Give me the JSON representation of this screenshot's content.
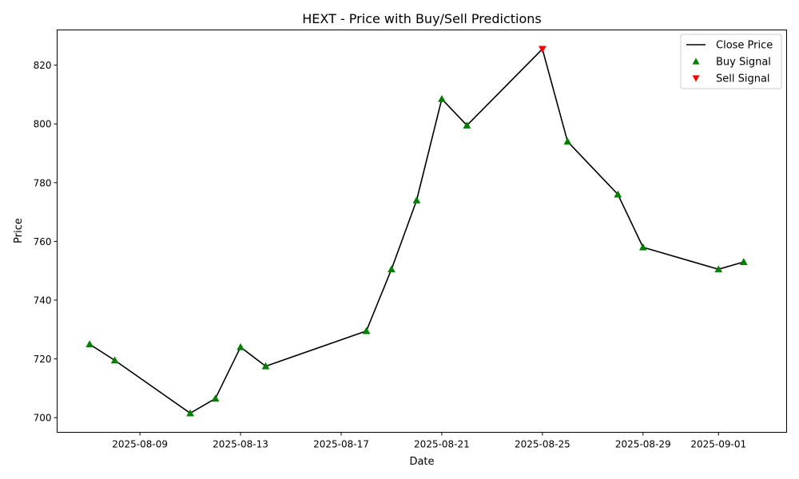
{
  "chart_data": {
    "type": "line",
    "title": "HEXT - Price with Buy/Sell Predictions",
    "xlabel": "Date",
    "ylabel": "Price",
    "xlim": [
      "2025-08-05T17:00",
      "2025-09-03T17:00"
    ],
    "ylim": [
      695,
      832
    ],
    "grid": false,
    "legend_position": "top-right",
    "x_ticks": [
      "2025-08-09",
      "2025-08-13",
      "2025-08-17",
      "2025-08-21",
      "2025-08-25",
      "2025-08-29",
      "2025-09-01"
    ],
    "y_ticks": [
      700,
      720,
      740,
      760,
      780,
      800,
      820
    ],
    "series": [
      {
        "name": "Close Price",
        "kind": "line",
        "color": "#000000",
        "points": [
          {
            "x": "2025-08-07",
            "y": 725.0
          },
          {
            "x": "2025-08-08",
            "y": 719.5
          },
          {
            "x": "2025-08-11",
            "y": 701.5
          },
          {
            "x": "2025-08-12",
            "y": 706.5
          },
          {
            "x": "2025-08-13",
            "y": 724.0
          },
          {
            "x": "2025-08-14",
            "y": 717.5
          },
          {
            "x": "2025-08-18",
            "y": 729.5
          },
          {
            "x": "2025-08-19",
            "y": 750.5
          },
          {
            "x": "2025-08-20",
            "y": 774.0
          },
          {
            "x": "2025-08-21",
            "y": 808.5
          },
          {
            "x": "2025-08-22",
            "y": 799.5
          },
          {
            "x": "2025-08-25",
            "y": 825.5
          },
          {
            "x": "2025-08-26",
            "y": 794.0
          },
          {
            "x": "2025-08-28",
            "y": 776.0
          },
          {
            "x": "2025-08-29",
            "y": 758.0
          },
          {
            "x": "2025-09-01",
            "y": 750.5
          },
          {
            "x": "2025-09-02",
            "y": 753.0
          }
        ]
      },
      {
        "name": "Buy Signal",
        "kind": "marker-up",
        "color": "#008000",
        "points": [
          {
            "x": "2025-08-07",
            "y": 725.0
          },
          {
            "x": "2025-08-08",
            "y": 719.5
          },
          {
            "x": "2025-08-11",
            "y": 701.5
          },
          {
            "x": "2025-08-12",
            "y": 706.5
          },
          {
            "x": "2025-08-13",
            "y": 724.0
          },
          {
            "x": "2025-08-14",
            "y": 717.5
          },
          {
            "x": "2025-08-18",
            "y": 729.5
          },
          {
            "x": "2025-08-19",
            "y": 750.5
          },
          {
            "x": "2025-08-20",
            "y": 774.0
          },
          {
            "x": "2025-08-21",
            "y": 808.5
          },
          {
            "x": "2025-08-22",
            "y": 799.5
          },
          {
            "x": "2025-08-26",
            "y": 794.0
          },
          {
            "x": "2025-08-28",
            "y": 776.0
          },
          {
            "x": "2025-08-29",
            "y": 758.0
          },
          {
            "x": "2025-09-01",
            "y": 750.5
          },
          {
            "x": "2025-09-02",
            "y": 753.0
          }
        ]
      },
      {
        "name": "Sell Signal",
        "kind": "marker-down",
        "color": "#ff0000",
        "points": [
          {
            "x": "2025-08-25",
            "y": 825.5
          }
        ]
      }
    ]
  }
}
